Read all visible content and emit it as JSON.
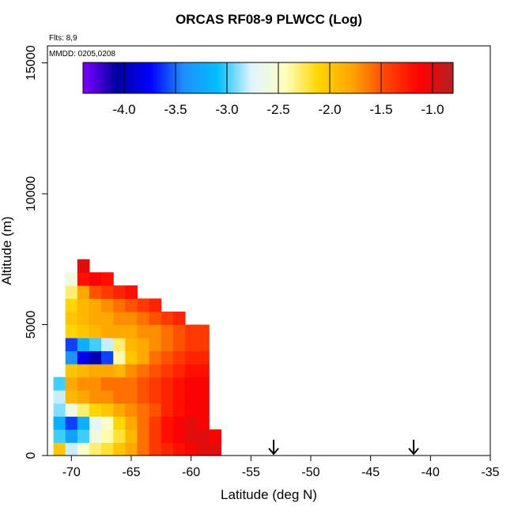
{
  "chart_data": {
    "type": "heatmap",
    "title": "ORCAS RF08-9 PLWCC (Log)",
    "annotations": [
      "Flts: 8,9",
      "MMDD: 0205,0208"
    ],
    "x_label": "Latitude (deg N)",
    "y_label": "Altitude (m)",
    "xlim": [
      -72,
      -35
    ],
    "xticks": [
      -70,
      -65,
      -60,
      -55,
      -50,
      -45,
      -40,
      -35
    ],
    "ylim": [
      0,
      15650
    ],
    "yticks": [
      0,
      5000,
      10000,
      15000
    ],
    "x_edges": [
      -71.5,
      -70.5,
      -69.5,
      -68.5,
      -67.5,
      -66.5,
      -65.5,
      -64.5,
      -63.5,
      -62.5,
      -61.5,
      -60.5,
      -59.5,
      -58.5,
      -57.5
    ],
    "y_edges": [
      0,
      500,
      1000,
      1500,
      2000,
      2500,
      3000,
      3500,
      4000,
      4500,
      5000,
      5500,
      6000,
      6500,
      7000,
      7500
    ],
    "z": [
      [
        -2.0,
        -2.8,
        -2.5,
        -2.3,
        -2.2,
        -2.0,
        -1.8,
        -1.6,
        -1.4,
        -1.3,
        -1.2,
        -1.1,
        -1.0,
        -1.0
      ],
      [
        -3.0,
        -3.3,
        -3.0,
        -2.6,
        -2.4,
        -2.2,
        -1.9,
        -1.6,
        -1.4,
        -1.2,
        -1.1,
        -1.0,
        -1.0,
        -1.1
      ],
      [
        -3.2,
        -3.6,
        -3.2,
        -2.7,
        -2.5,
        -2.1,
        -1.8,
        -1.6,
        -1.4,
        -1.2,
        -1.1,
        -1.0,
        -1.1,
        null
      ],
      [
        -2.9,
        -2.6,
        -2.3,
        -2.1,
        -2.0,
        -1.8,
        -1.7,
        -1.6,
        -1.5,
        -1.3,
        -1.2,
        -1.1,
        -1.1,
        null
      ],
      [
        -2.8,
        -1.9,
        -1.8,
        -1.7,
        -1.7,
        -1.6,
        -1.6,
        -1.5,
        -1.4,
        -1.3,
        -1.2,
        -1.1,
        -1.1,
        null
      ],
      [
        -3.0,
        -1.8,
        -1.7,
        -1.7,
        -1.6,
        -1.6,
        -1.6,
        -1.5,
        -1.4,
        -1.3,
        -1.2,
        -1.1,
        -1.1,
        null
      ],
      [
        null,
        -2.0,
        -1.9,
        -1.8,
        -1.8,
        -1.9,
        -1.7,
        -1.6,
        -1.5,
        -1.4,
        -1.3,
        -1.2,
        -1.2,
        null
      ],
      [
        null,
        -3.4,
        -3.8,
        -4.0,
        -3.6,
        -2.4,
        -2.0,
        -1.8,
        -1.6,
        -1.5,
        -1.4,
        -1.3,
        -1.3,
        null
      ],
      [
        null,
        -3.6,
        -3.2,
        -3.0,
        -2.8,
        -2.3,
        -1.9,
        -1.8,
        -1.7,
        -1.6,
        -1.5,
        -1.4,
        -1.4,
        null
      ],
      [
        null,
        -2.1,
        -2.0,
        -1.9,
        -1.8,
        -1.8,
        -1.8,
        -1.7,
        -1.7,
        -1.6,
        -1.5,
        -1.4,
        -1.4,
        null
      ],
      [
        null,
        -2.0,
        -1.9,
        -1.8,
        -1.8,
        -1.7,
        -1.7,
        -1.6,
        -1.5,
        -1.4,
        -1.3,
        null,
        null,
        null
      ],
      [
        null,
        -2.1,
        -1.9,
        -1.8,
        -1.7,
        -1.6,
        -1.5,
        -1.4,
        -1.3,
        null,
        null,
        null,
        null,
        null
      ],
      [
        null,
        -2.3,
        -1.8,
        -1.5,
        -1.4,
        -1.3,
        -1.2,
        null,
        null,
        null,
        null,
        null,
        null,
        null
      ],
      [
        null,
        -2.6,
        -1.2,
        -1.1,
        -1.2,
        null,
        null,
        null,
        null,
        null,
        null,
        null,
        null,
        null
      ],
      [
        null,
        null,
        -1.0,
        null,
        null,
        null,
        null,
        null,
        null,
        null,
        null,
        null,
        null,
        null
      ]
    ],
    "zlim": [
      -4.4,
      -0.8
    ],
    "zticks": [
      {
        "value": -4,
        "label": "-4.0"
      },
      {
        "value": -3.5,
        "label": "-3.5"
      },
      {
        "value": -3,
        "label": "-3.0"
      },
      {
        "value": -2.5,
        "label": "-2.5"
      },
      {
        "value": -2,
        "label": "-2.0"
      },
      {
        "value": -1.5,
        "label": "-1.5"
      },
      {
        "value": -1,
        "label": "-1.0"
      }
    ],
    "colorscale": [
      "#7f00ff",
      "#0000a0",
      "#0000ff",
      "#1e90ff",
      "#00bfff",
      "#e0f4ff",
      "#ffffc0",
      "#ffd700",
      "#ffa500",
      "#ff4500",
      "#ff0000",
      "#b22222"
    ],
    "arrows": [
      -53.1,
      -41.4
    ]
  }
}
